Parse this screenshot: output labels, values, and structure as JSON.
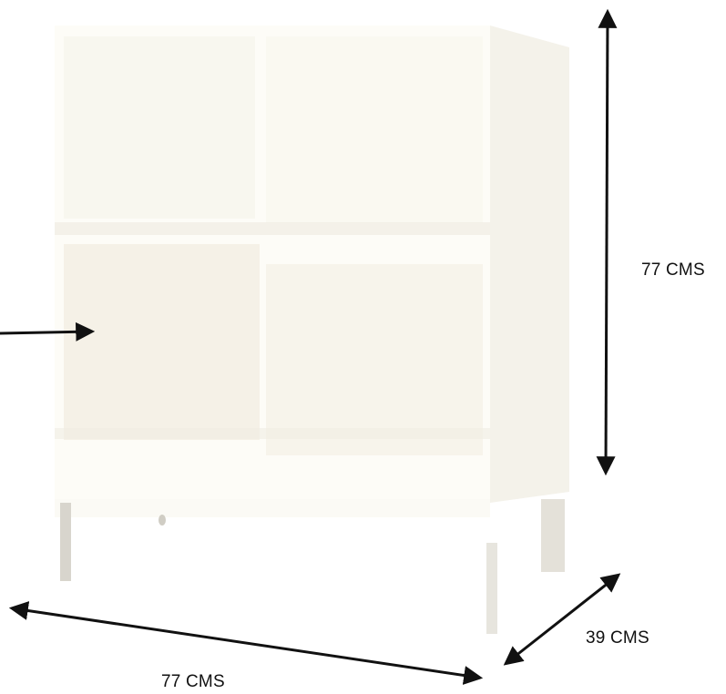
{
  "dimensions": {
    "height_label": "77 CMS",
    "width_label": "77 CMS",
    "depth_label": "39 CMS"
  },
  "colors": {
    "cabinet_front": "#fdfcf7",
    "cabinet_side": "#f3f1e8",
    "cube_shadow": "#f1eee2",
    "leg_shade": "#d6d3cb",
    "arrow": "#111111"
  }
}
